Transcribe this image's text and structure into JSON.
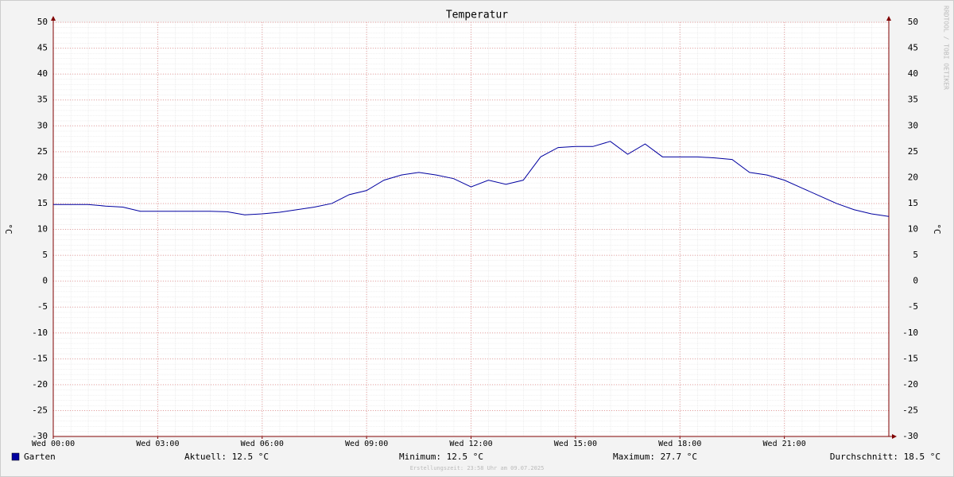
{
  "chart_data": {
    "type": "line",
    "title": "Temperatur",
    "ylabel": "°C",
    "watermark": "RRDTOOL / TOBI OETIKER",
    "x": [
      0,
      0.5,
      1,
      1.5,
      2,
      2.5,
      3,
      3.5,
      4,
      4.5,
      5,
      5.5,
      6,
      6.5,
      7,
      7.5,
      8,
      8.5,
      9,
      9.5,
      10,
      10.5,
      11,
      11.5,
      12,
      12.5,
      13,
      13.5,
      14,
      14.5,
      15,
      15.5,
      16,
      16.5,
      17,
      17.5,
      18,
      18.5,
      19,
      19.5,
      20,
      20.5,
      21,
      21.5,
      22,
      22.5,
      23,
      23.5,
      24
    ],
    "series": [
      {
        "name": "Garten",
        "color": "#0000a0",
        "values": [
          14.8,
          14.8,
          14.8,
          14.5,
          14.3,
          13.5,
          13.5,
          13.5,
          13.5,
          13.5,
          13.4,
          12.8,
          13.0,
          13.3,
          13.8,
          14.3,
          15.0,
          16.7,
          17.5,
          19.5,
          20.5,
          21.0,
          20.5,
          19.8,
          18.2,
          19.5,
          18.7,
          19.5,
          24.0,
          25.8,
          26.0,
          26.0,
          27.0,
          24.5,
          26.5,
          24.0,
          24.0,
          24.0,
          23.8,
          23.5,
          21.0,
          20.5,
          19.5,
          18.0,
          16.5,
          15.0,
          13.8,
          13.0,
          12.5
        ]
      }
    ],
    "xlim": [
      0,
      24
    ],
    "xticks": [
      {
        "value": 0,
        "label": "Wed 00:00"
      },
      {
        "value": 3,
        "label": "Wed 03:00"
      },
      {
        "value": 6,
        "label": "Wed 06:00"
      },
      {
        "value": 9,
        "label": "Wed 09:00"
      },
      {
        "value": 12,
        "label": "Wed 12:00"
      },
      {
        "value": 15,
        "label": "Wed 15:00"
      },
      {
        "value": 18,
        "label": "Wed 18:00"
      },
      {
        "value": 21,
        "label": "Wed 21:00"
      }
    ],
    "ylim": [
      -30,
      50
    ],
    "yticks": [
      -30,
      -25,
      -20,
      -15,
      -10,
      -5,
      0,
      5,
      10,
      15,
      20,
      25,
      30,
      35,
      40,
      45,
      50
    ],
    "grid": true,
    "legend_stats": [
      "Aktuell: 12.5 °C",
      "Minimum: 12.5 °C",
      "Maximum: 27.7 °C",
      "Durchschnitt: 18.5 °C"
    ],
    "footer": "Erstellungszeit: 23:58 Uhr am 09.07.2025"
  }
}
